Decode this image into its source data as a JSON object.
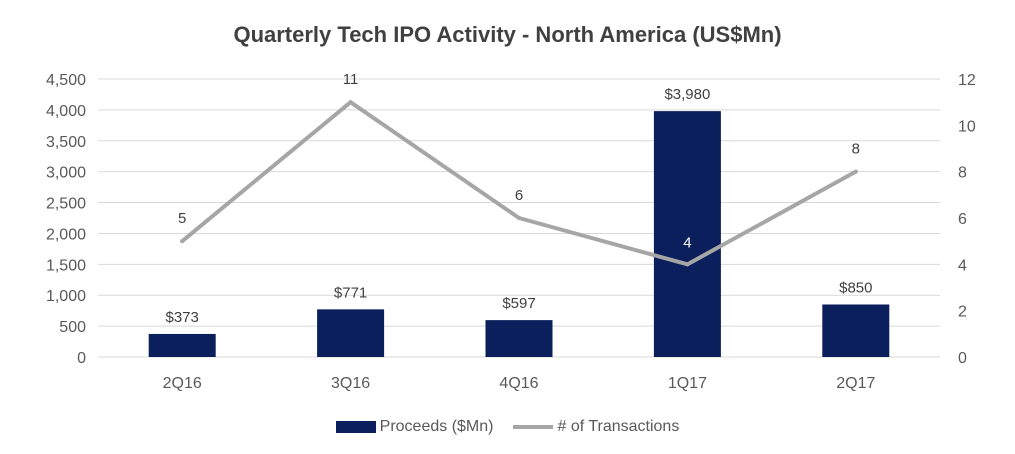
{
  "colors": {
    "bar": "#0B1F5C",
    "line": "#A6A6A6",
    "grid": "#D9D9D9",
    "text": "#595959"
  },
  "chart_data": {
    "type": "bar",
    "title": "Quarterly Tech IPO Activity - North America (US$Mn)",
    "categories": [
      "2Q16",
      "3Q16",
      "4Q16",
      "1Q17",
      "2Q17"
    ],
    "series": [
      {
        "name": "Proceeds ($Mn)",
        "type": "bar",
        "axis": "left",
        "values": [
          373,
          771,
          597,
          3980,
          850
        ],
        "labels": [
          "$373",
          "$771",
          "$597",
          "$3,980",
          "$850"
        ]
      },
      {
        "name": "# of Transactions",
        "type": "line",
        "axis": "right",
        "values": [
          5,
          11,
          6,
          4,
          8
        ],
        "labels": [
          "5",
          "11",
          "6",
          "4",
          "8"
        ]
      }
    ],
    "y_left": {
      "min": 0,
      "max": 4500,
      "ticks": [
        "0",
        "500",
        "1,000",
        "1,500",
        "2,000",
        "2,500",
        "3,000",
        "3,500",
        "4,000",
        "4,500"
      ]
    },
    "y_right": {
      "min": 0,
      "max": 12,
      "ticks": [
        "0",
        "2",
        "4",
        "6",
        "8",
        "10",
        "12"
      ]
    },
    "grid": true,
    "legend_position": "bottom"
  }
}
